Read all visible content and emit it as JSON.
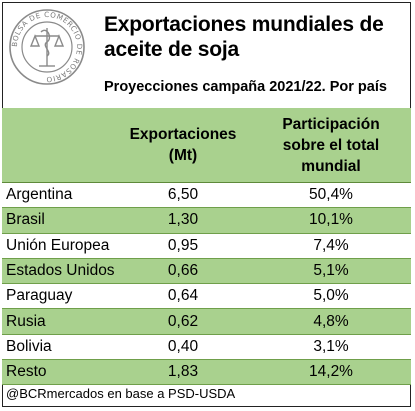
{
  "header": {
    "title": "Exportaciones mundiales de aceite de soja",
    "subtitle": "Proyecciones campaña 2021/22. Por país",
    "logo_text": "BOLSA DE COMERCIO DE ROSARIO"
  },
  "table": {
    "columns": [
      "",
      "Exportaciones (Mt)",
      "Participación sobre el total mundial"
    ],
    "column_lines": [
      [],
      [
        "Exportaciones",
        "(Mt)"
      ],
      [
        "Participación",
        "sobre el total",
        "mundial"
      ]
    ],
    "rows": [
      {
        "country": "Argentina",
        "exports": "6,50",
        "share": "50,4%"
      },
      {
        "country": "Brasil",
        "exports": "1,30",
        "share": "10,1%"
      },
      {
        "country": "Unión Europea",
        "exports": "0,95",
        "share": "7,4%"
      },
      {
        "country": "Estados Unidos",
        "exports": "0,66",
        "share": "5,1%"
      },
      {
        "country": "Paraguay",
        "exports": "0,64",
        "share": "5,0%"
      },
      {
        "country": "Rusia",
        "exports": "0,62",
        "share": "4,8%"
      },
      {
        "country": "Bolivia",
        "exports": "0,40",
        "share": "3,1%"
      },
      {
        "country": "Resto",
        "exports": "1,83",
        "share": "14,2%"
      }
    ]
  },
  "footer": {
    "source": "@BCRmercados en base a PSD-USDA"
  },
  "colors": {
    "header_fill": "#a9d18e",
    "band_fill": "#a9d18e",
    "seal": "#8a8a8a"
  }
}
